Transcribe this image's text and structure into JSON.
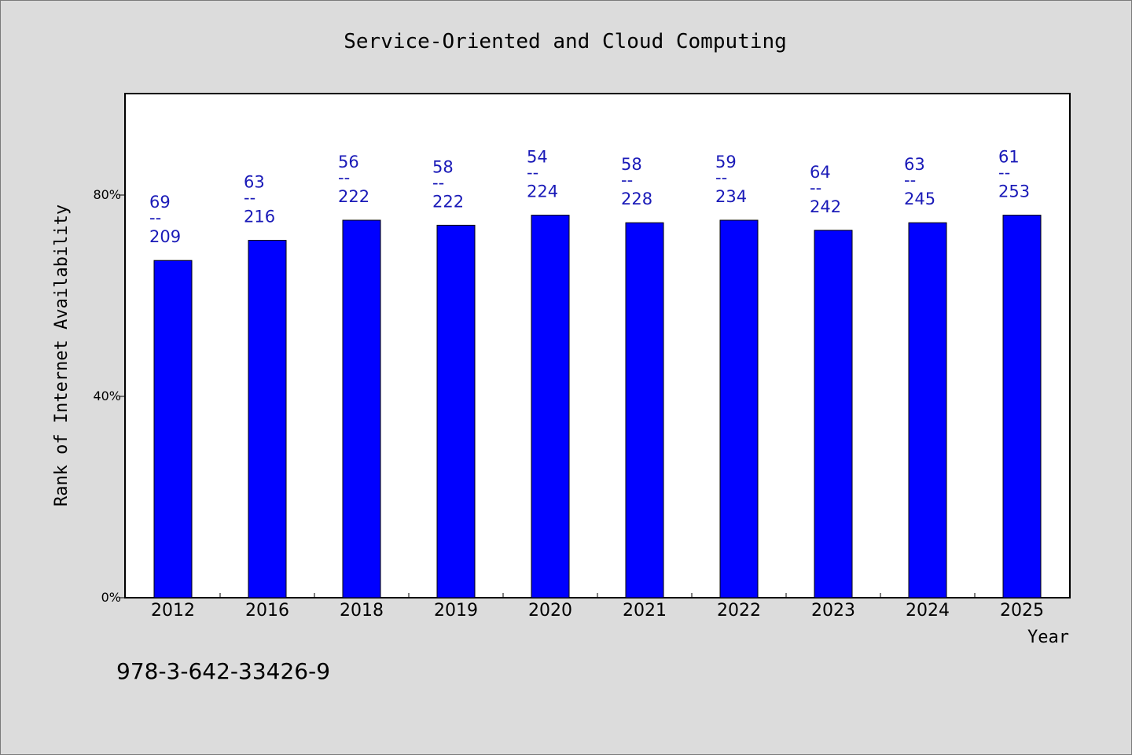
{
  "chart_data": {
    "type": "bar",
    "title": "Service-Oriented and Cloud Computing",
    "xlabel": "Year",
    "ylabel": "Rank of Internet Availability",
    "categories": [
      "2012",
      "2016",
      "2018",
      "2019",
      "2020",
      "2021",
      "2022",
      "2023",
      "2024",
      "2025"
    ],
    "values": [
      67,
      71,
      75,
      74,
      76,
      74.5,
      75,
      73,
      74.5,
      76
    ],
    "labels_top": [
      "69",
      "63",
      "56",
      "58",
      "54",
      "58",
      "59",
      "64",
      "63",
      "61"
    ],
    "labels_sep": "--",
    "labels_bottom": [
      "209",
      "216",
      "222",
      "222",
      "224",
      "228",
      "234",
      "242",
      "245",
      "253"
    ],
    "ylim": [
      0,
      100
    ],
    "yticks": [
      0,
      40,
      80
    ],
    "ytick_labels": [
      "0%",
      "40%",
      "80%"
    ],
    "grid": false,
    "bar_color": "#0000ff",
    "label_color": "#1a1ab8"
  },
  "footer": {
    "isbn": "978-3-642-33426-9"
  }
}
